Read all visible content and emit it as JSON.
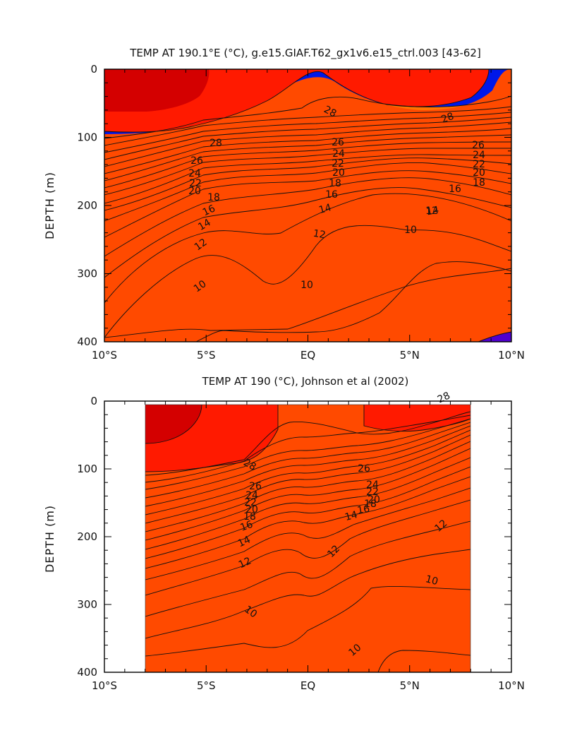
{
  "chart_data": [
    {
      "type": "contour",
      "title": "TEMP AT 190.1°E (°C), g.e15.GIAF.T62_gx1v6.e15_ctrl.003 [43-62]",
      "xlabel": "",
      "ylabel": "DEPTH (m)",
      "x_tick_labels": [
        "10°S",
        "5°S",
        "EQ",
        "5°N",
        "10°N"
      ],
      "x_tick_values": [
        -10,
        -5,
        0,
        5,
        10
      ],
      "y_tick_labels": [
        "0",
        "100",
        "200",
        "300",
        "400"
      ],
      "y_tick_values": [
        0,
        100,
        200,
        300,
        400
      ],
      "xlim": [
        -10,
        10
      ],
      "ylim": [
        400,
        0
      ],
      "data_xlim": [
        -10,
        10
      ],
      "contour_interval": 1,
      "contour_range": [
        8,
        29
      ],
      "isotherm_depths": [
        {
          "temp": 28,
          "lat": [
            -10,
            -5,
            -2,
            0,
            2,
            5,
            8,
            10
          ],
          "depth": [
            108,
            105,
            85,
            57,
            70,
            88,
            80,
            70
          ]
        },
        {
          "temp": 26,
          "lat": [
            -10,
            -5,
            -2,
            0,
            2,
            5,
            8,
            10
          ],
          "depth": [
            130,
            125,
            117,
            100,
            110,
            112,
            107,
            98
          ]
        },
        {
          "temp": 24,
          "lat": [
            -10,
            -5,
            -2,
            0,
            2,
            5,
            8,
            10
          ],
          "depth": [
            150,
            145,
            135,
            125,
            127,
            128,
            125,
            120
          ]
        },
        {
          "temp": 22,
          "lat": [
            -10,
            -5,
            -2,
            0,
            2,
            5,
            8,
            10
          ],
          "depth": [
            170,
            160,
            150,
            138,
            139,
            140,
            138,
            135
          ]
        },
        {
          "temp": 20,
          "lat": [
            -10,
            -5,
            -2,
            0,
            2,
            5,
            8,
            10
          ],
          "depth": [
            190,
            175,
            160,
            150,
            150,
            150,
            149,
            148
          ]
        },
        {
          "temp": 18,
          "lat": [
            -10,
            -5,
            -2,
            0,
            2,
            5,
            8,
            10
          ],
          "depth": [
            215,
            192,
            175,
            165,
            163,
            163,
            162,
            162
          ]
        },
        {
          "temp": 16,
          "lat": [
            -10,
            -5,
            -2,
            0,
            2,
            5,
            8,
            10
          ],
          "depth": [
            240,
            210,
            195,
            185,
            180,
            178,
            182,
            188
          ]
        },
        {
          "temp": 14,
          "lat": [
            -10,
            -5,
            -2,
            0,
            2,
            5,
            8,
            10
          ],
          "depth": [
            275,
            235,
            222,
            212,
            205,
            200,
            210,
            222
          ]
        },
        {
          "temp": 12,
          "lat": [
            -10,
            -5,
            -2,
            0,
            2,
            5,
            8,
            10
          ],
          "depth": [
            320,
            270,
            250,
            245,
            230,
            220,
            235,
            250
          ]
        },
        {
          "temp": 10,
          "lat": [
            -10,
            -6,
            -4,
            -1,
            0,
            1,
            3,
            6,
            8,
            10
          ],
          "depth": [
            395,
            310,
            290,
            315,
            320,
            298,
            250,
            235,
            245,
            262
          ]
        }
      ],
      "contour_labels": [
        "28",
        "28",
        "28",
        "26",
        "26",
        "26",
        "24",
        "24",
        "24",
        "22",
        "22",
        "22",
        "20",
        "20",
        "20",
        "18",
        "18",
        "18",
        "16",
        "16",
        "16",
        "14",
        "14",
        "14",
        "12",
        "12",
        "12",
        "10",
        "10",
        "10"
      ]
    },
    {
      "type": "contour",
      "title": "TEMP AT 190 (°C), Johnson et al (2002)",
      "xlabel": "",
      "ylabel": "DEPTH (m)",
      "x_tick_labels": [
        "10°S",
        "5°S",
        "EQ",
        "5°N",
        "10°N"
      ],
      "x_tick_values": [
        -10,
        -5,
        0,
        5,
        10
      ],
      "y_tick_labels": [
        "0",
        "100",
        "200",
        "300",
        "400"
      ],
      "y_tick_values": [
        0,
        100,
        200,
        300,
        400
      ],
      "xlim": [
        -10,
        10
      ],
      "ylim": [
        400,
        0
      ],
      "data_xlim": [
        -8,
        8
      ],
      "contour_interval": 1,
      "contour_range": [
        8,
        29
      ],
      "isotherm_depths": [
        {
          "temp": 28,
          "lat": [
            -8,
            -5,
            -3,
            -1,
            0,
            1,
            3,
            5,
            8
          ],
          "depth": [
            100,
            95,
            90,
            60,
            45,
            50,
            60,
            55,
            35
          ]
        },
        {
          "temp": 26,
          "lat": [
            -8,
            -5,
            -3,
            -1,
            0,
            1,
            3,
            5,
            8
          ],
          "depth": [
            130,
            122,
            112,
            95,
            85,
            88,
            95,
            88,
            68
          ]
        },
        {
          "temp": 24,
          "lat": [
            -8,
            -5,
            -3,
            -1,
            0,
            1,
            3,
            5,
            8
          ],
          "depth": [
            145,
            137,
            125,
            112,
            108,
            112,
            118,
            112,
            90
          ]
        },
        {
          "temp": 22,
          "lat": [
            -8,
            -5,
            -3,
            -1,
            0,
            1,
            3,
            5,
            8
          ],
          "depth": [
            165,
            150,
            138,
            125,
            122,
            127,
            132,
            128,
            102
          ]
        },
        {
          "temp": 20,
          "lat": [
            -8,
            -5,
            -3,
            -1,
            0,
            1,
            3,
            5,
            8
          ],
          "depth": [
            182,
            163,
            150,
            138,
            135,
            140,
            146,
            142,
            115
          ]
        },
        {
          "temp": 18,
          "lat": [
            -8,
            -5,
            -3,
            -1,
            0,
            1,
            3,
            5,
            8
          ],
          "depth": [
            200,
            178,
            162,
            150,
            148,
            154,
            158,
            155,
            128
          ]
        },
        {
          "temp": 16,
          "lat": [
            -8,
            -5,
            -3,
            -1,
            0,
            1,
            3,
            5,
            8
          ],
          "depth": [
            218,
            195,
            178,
            168,
            170,
            168,
            170,
            170,
            142
          ]
        },
        {
          "temp": 14,
          "lat": [
            -8,
            -5,
            -3,
            -1,
            0,
            1,
            3,
            5,
            8
          ],
          "depth": [
            240,
            215,
            200,
            190,
            198,
            185,
            185,
            185,
            160
          ]
        },
        {
          "temp": 12,
          "lat": [
            -8,
            -5,
            -3,
            -1,
            0,
            1,
            3,
            5,
            8
          ],
          "depth": [
            270,
            240,
            225,
            225,
            240,
            215,
            205,
            205,
            180
          ]
        },
        {
          "temp": 10,
          "lat": [
            -8,
            -5,
            -3,
            -1,
            0,
            1,
            3,
            5,
            8
          ],
          "depth": [
            365,
            345,
            340,
            360,
            385,
            385,
            330,
            265,
            265
          ]
        }
      ],
      "contour_labels": [
        "28",
        "28",
        "26",
        "26",
        "24",
        "24",
        "22",
        "22",
        "20",
        "20",
        "18",
        "18",
        "16",
        "16",
        "14",
        "14",
        "12",
        "12",
        "12",
        "10",
        "10",
        "10"
      ]
    }
  ],
  "colors": {
    "t29": "#d40000",
    "t28": "#ff1a00",
    "t27": "#ff4a00",
    "t26": "#ff7400",
    "t25": "#ff9a10",
    "t24": "#ffb820",
    "t23": "#ffd030",
    "t22": "#ffe23a",
    "t21": "#fff040",
    "t20": "#ffff00",
    "t19": "#c0ff00",
    "t18": "#40ff00",
    "t17": "#00e050",
    "t16": "#00ffc8",
    "t15": "#00f0ff",
    "t14": "#00d8ff",
    "t13": "#00c8ff",
    "t12": "#00b4ff",
    "t11": "#009cff",
    "t10": "#0080ff",
    "t9": "#0050ff",
    "t8": "#0018e8",
    "t7": "#5000d0"
  }
}
